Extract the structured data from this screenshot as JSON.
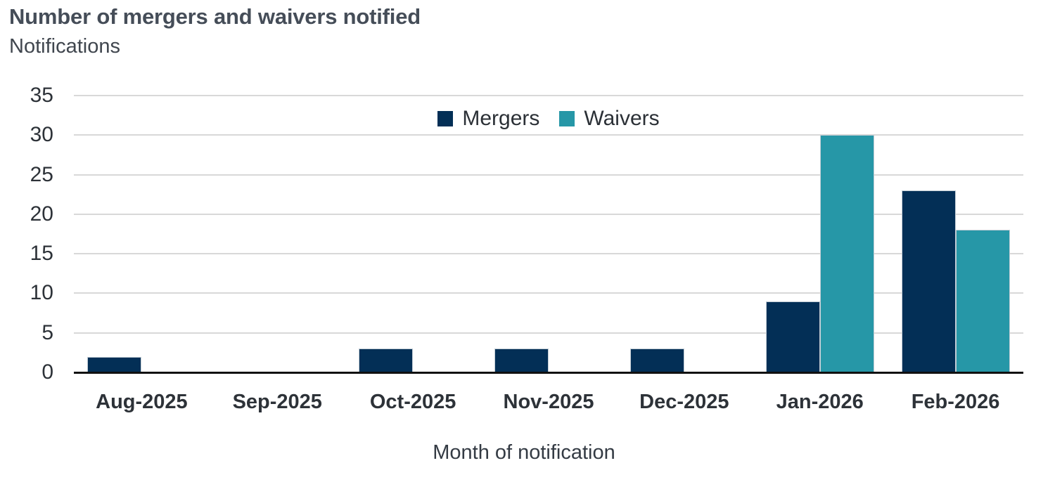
{
  "chart_data": {
    "type": "bar",
    "title": "Number of mergers and waivers notified",
    "subtitle": "Notifications",
    "xlabel": "Month of notification",
    "ylabel": "Notifications",
    "categories": [
      "Aug-2025",
      "Sep-2025",
      "Oct-2025",
      "Nov-2025",
      "Dec-2025",
      "Jan-2026",
      "Feb-2026"
    ],
    "series": [
      {
        "name": "Mergers",
        "color": "#032f56",
        "values": [
          2,
          0,
          3,
          3,
          3,
          9,
          23
        ]
      },
      {
        "name": "Waivers",
        "color": "#2697a7",
        "values": [
          0,
          0,
          0,
          0,
          0,
          30,
          18
        ]
      }
    ],
    "ylim": [
      0,
      35
    ],
    "ytick_step": 5,
    "yticks": [
      0,
      5,
      10,
      15,
      20,
      25,
      30,
      35
    ],
    "grid": true,
    "legend_position": "top-center"
  },
  "colors": {
    "background": "#ffffff",
    "title_text": "#454d58",
    "axis_text": "#2d3238",
    "gridline": "#d8d8d8",
    "axis_line": "#111111",
    "mergers": "#032f56",
    "waivers": "#2697a7"
  }
}
